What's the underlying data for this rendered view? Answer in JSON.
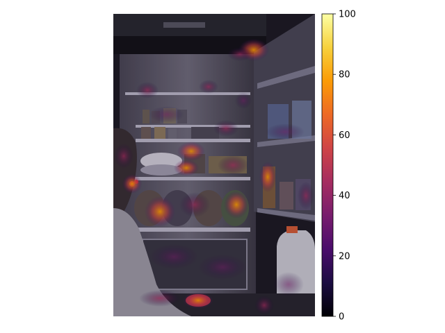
{
  "figure": {
    "image_subject": "saliency heatmap overlaid on a photo of a person eating beside an open, well-stocked refrigerator at night",
    "overlay_colormap": "inferno",
    "colorbar": {
      "ticks": [
        0,
        20,
        40,
        60,
        80,
        100
      ],
      "range": [
        0,
        100
      ],
      "colors": [
        "#000004",
        "#1b0c41",
        "#4a0c6b",
        "#781c6d",
        "#a52c60",
        "#cf4446",
        "#ed6925",
        "#fb9b06",
        "#f7d13d",
        "#fcffa4"
      ]
    }
  }
}
